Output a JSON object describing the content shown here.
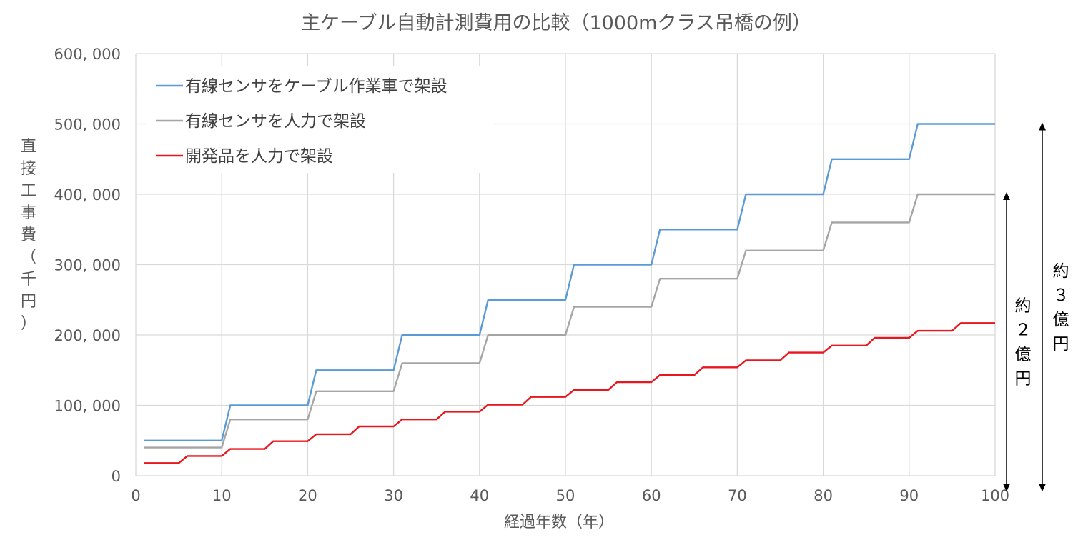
{
  "chart_data": {
    "type": "line",
    "title": "主ケーブル自動計測費用の比較（1000mクラス吊橋の例）",
    "xlabel": "経過年数（年）",
    "ylabel": "直接工事費（千円）",
    "xlim": [
      0,
      100
    ],
    "ylim": [
      0,
      600000
    ],
    "x_ticks": [
      0,
      10,
      20,
      30,
      40,
      50,
      60,
      70,
      80,
      90,
      100
    ],
    "y_ticks": [
      0,
      100000,
      200000,
      300000,
      400000,
      500000,
      600000
    ],
    "y_tick_labels": [
      "0",
      "100, 000",
      "200, 000",
      "300, 000",
      "400, 000",
      "500, 000",
      "600, 000"
    ],
    "grid": true,
    "legend_position": "top-left",
    "series": [
      {
        "name": "有線センサをケーブル作業車で架設",
        "color": "#5b9bd5",
        "step_interval_years": 10,
        "x": [
          1,
          10,
          11,
          20,
          21,
          30,
          31,
          40,
          41,
          50,
          51,
          60,
          61,
          70,
          71,
          80,
          81,
          90,
          91,
          100
        ],
        "y": [
          50000,
          50000,
          100000,
          100000,
          150000,
          150000,
          200000,
          200000,
          250000,
          250000,
          300000,
          300000,
          350000,
          350000,
          400000,
          400000,
          450000,
          450000,
          500000,
          500000
        ]
      },
      {
        "name": "有線センサを人力で架設",
        "color": "#a5a5a5",
        "step_interval_years": 10,
        "x": [
          1,
          10,
          11,
          20,
          21,
          30,
          31,
          40,
          41,
          50,
          51,
          60,
          61,
          70,
          71,
          80,
          81,
          90,
          91,
          100
        ],
        "y": [
          40000,
          40000,
          80000,
          80000,
          120000,
          120000,
          160000,
          160000,
          200000,
          200000,
          240000,
          240000,
          280000,
          280000,
          320000,
          320000,
          360000,
          360000,
          400000,
          400000
        ]
      },
      {
        "name": "開発品を人力で架設",
        "color": "#e8171d",
        "step_interval_years": 5,
        "x": [
          1,
          5,
          6,
          10,
          11,
          15,
          16,
          20,
          21,
          25,
          26,
          30,
          31,
          35,
          36,
          40,
          41,
          45,
          46,
          50,
          51,
          55,
          56,
          60,
          61,
          65,
          66,
          70,
          71,
          75,
          76,
          80,
          81,
          85,
          86,
          90,
          91,
          95,
          96,
          100
        ],
        "y": [
          18000,
          18000,
          28000,
          28000,
          38000,
          38000,
          49000,
          49000,
          59000,
          59000,
          70000,
          70000,
          80000,
          80000,
          91000,
          91000,
          101000,
          101000,
          112000,
          112000,
          122000,
          122000,
          133000,
          133000,
          143000,
          143000,
          154000,
          154000,
          164000,
          164000,
          175000,
          175000,
          185000,
          185000,
          196000,
          196000,
          206000,
          206000,
          217000,
          217000
        ]
      }
    ],
    "annotations": [
      {
        "text": "約２億円",
        "from_series": "有線センサを人力で架設",
        "to_series": "開発品を人力で架設",
        "at": "right"
      },
      {
        "text": "約３億円",
        "from_series": "有線センサをケーブル作業車で架設",
        "to_series": "開発品を人力で架設",
        "at": "right"
      }
    ]
  }
}
